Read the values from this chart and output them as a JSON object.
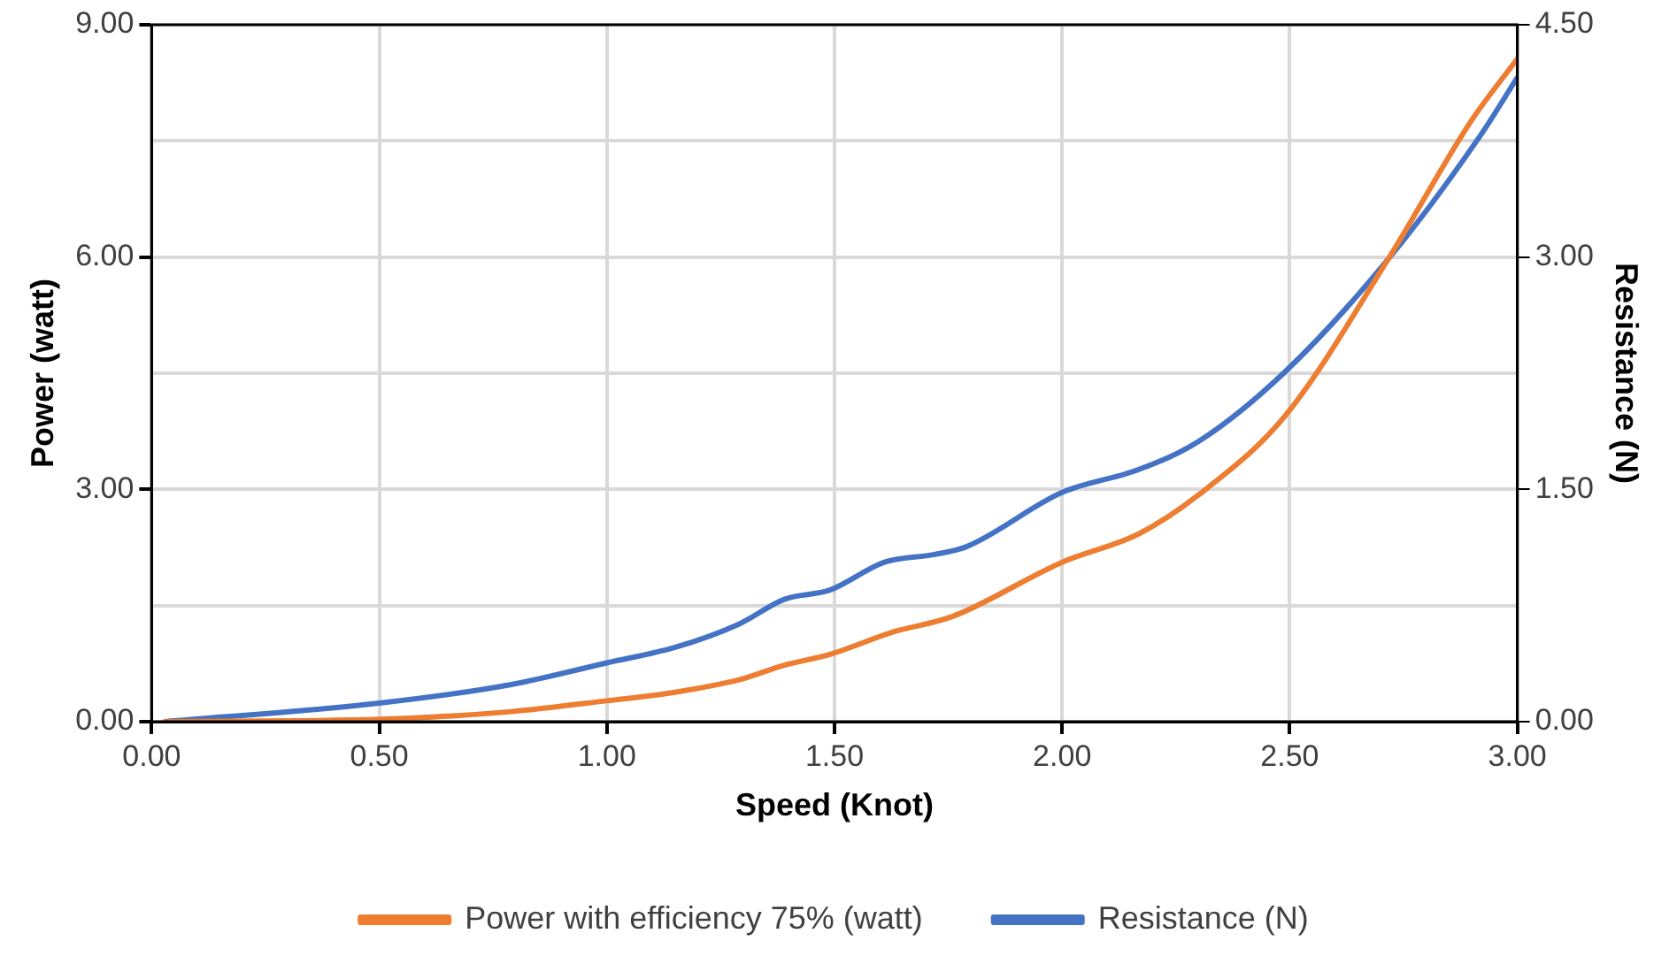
{
  "chart_data": {
    "type": "line",
    "xlabel": "Speed (Knot)",
    "ylabel": "Power (watt)",
    "y2label": "Resistance (N)",
    "xlim": [
      0,
      3
    ],
    "xticks": [
      {
        "value": 0,
        "label": "0.00"
      },
      {
        "value": 0.5,
        "label": "0.50"
      },
      {
        "value": 1,
        "label": "1.00"
      },
      {
        "value": 1.5,
        "label": "1.50"
      },
      {
        "value": 2,
        "label": "2.00"
      },
      {
        "value": 2.5,
        "label": "2.50"
      },
      {
        "value": 3,
        "label": "3.00"
      }
    ],
    "ylim": [
      0,
      9
    ],
    "yticks": [
      {
        "value": 0,
        "label": "0.00"
      },
      {
        "value": 1.5,
        "label": null
      },
      {
        "value": 3,
        "label": "3.00"
      },
      {
        "value": 4.5,
        "label": null
      },
      {
        "value": 6,
        "label": "6.00"
      },
      {
        "value": 7.5,
        "label": null
      },
      {
        "value": 9,
        "label": "9.00"
      }
    ],
    "y2lim": [
      0,
      4.5
    ],
    "y2ticks": [
      {
        "value": 0,
        "label": "0.00"
      },
      {
        "value": 1.5,
        "label": "1.50"
      },
      {
        "value": 3,
        "label": "3.00"
      },
      {
        "value": 4.5,
        "label": "4.50"
      }
    ],
    "grid": true,
    "legend": "bottom",
    "marker": "none",
    "line_style": "solid",
    "series": [
      {
        "name": "Power with efficiency 75% (watt)",
        "color": "#ed7d31",
        "x": [
          0.03,
          0.5,
          0.79,
          1.0,
          1.15,
          1.29,
          1.39,
          1.49,
          1.63,
          1.76,
          2.0,
          2.17,
          2.3,
          2.49,
          2.72,
          2.9,
          3.0
        ],
        "values": [
          0,
          0.03,
          0.13,
          0.27,
          0.38,
          0.54,
          0.73,
          0.87,
          1.16,
          1.36,
          2.06,
          2.43,
          2.93,
          3.95,
          6.01,
          7.77,
          8.56
        ]
      },
      {
        "name": "Resistance (N)",
        "color": "#4472c4",
        "axis": "y2",
        "x": [
          0.03,
          0.5,
          0.79,
          1.0,
          1.15,
          1.29,
          1.39,
          1.49,
          1.61,
          1.72,
          1.79,
          2.0,
          2.17,
          2.3,
          2.49,
          2.72,
          2.92,
          3.0
        ],
        "values": [
          0,
          0.12,
          0.24,
          0.38,
          0.48,
          0.63,
          0.79,
          0.85,
          1.03,
          1.08,
          1.13,
          1.48,
          1.63,
          1.81,
          2.26,
          3.0,
          3.79,
          4.16
        ]
      }
    ]
  }
}
